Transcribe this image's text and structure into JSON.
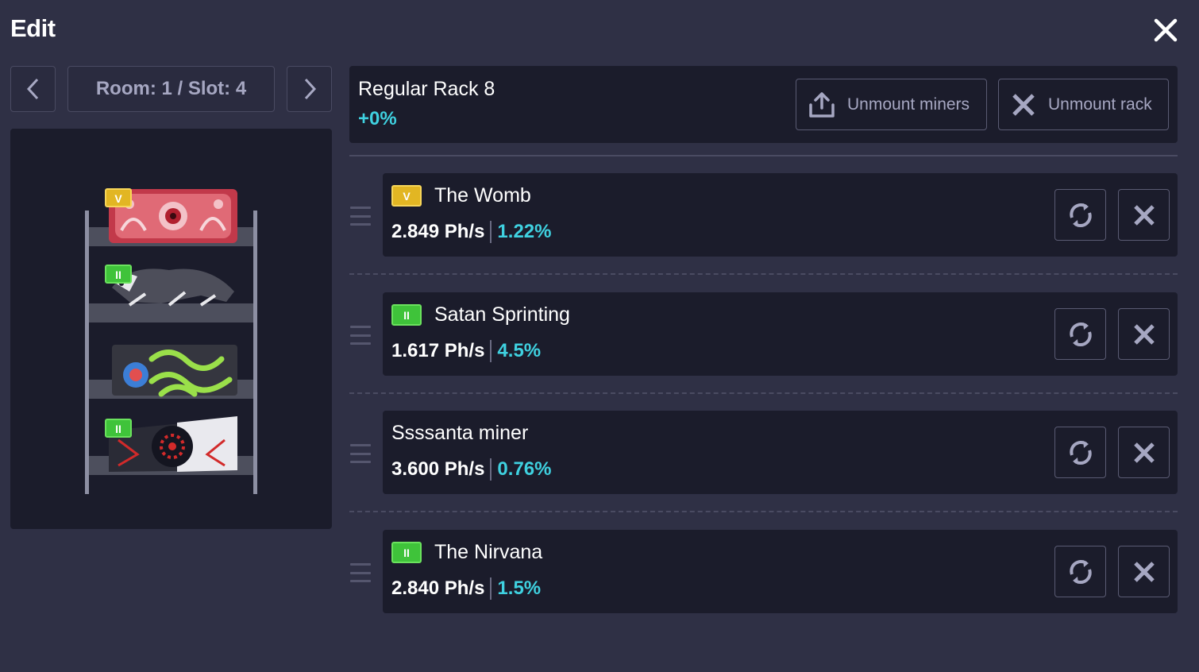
{
  "header": {
    "title": "Edit"
  },
  "nav": {
    "label": "Room: 1 / Slot: 4"
  },
  "rack": {
    "name": "Regular Rack 8",
    "bonus": "+0%",
    "unmount_miners_label": "Unmount miners",
    "unmount_rack_label": "Unmount rack"
  },
  "miners": [
    {
      "name": "The Womb",
      "power": "2.849 Ph/s",
      "bonus": "1.22%",
      "badge": "V",
      "badge_color": "#e2b623"
    },
    {
      "name": "Satan Sprinting",
      "power": "1.617 Ph/s",
      "bonus": "4.5%",
      "badge": "II",
      "badge_color": "#3fc33a"
    },
    {
      "name": "Ssssanta miner",
      "power": "3.600 Ph/s",
      "bonus": "0.76%",
      "badge": "",
      "badge_color": ""
    },
    {
      "name": "The Nirvana",
      "power": "2.840 Ph/s",
      "bonus": "1.5%",
      "badge": "II",
      "badge_color": "#3fc33a"
    }
  ],
  "colors": {
    "accent": "#3fd1e0",
    "background": "#2f3045",
    "panel": "#1b1c2b"
  }
}
